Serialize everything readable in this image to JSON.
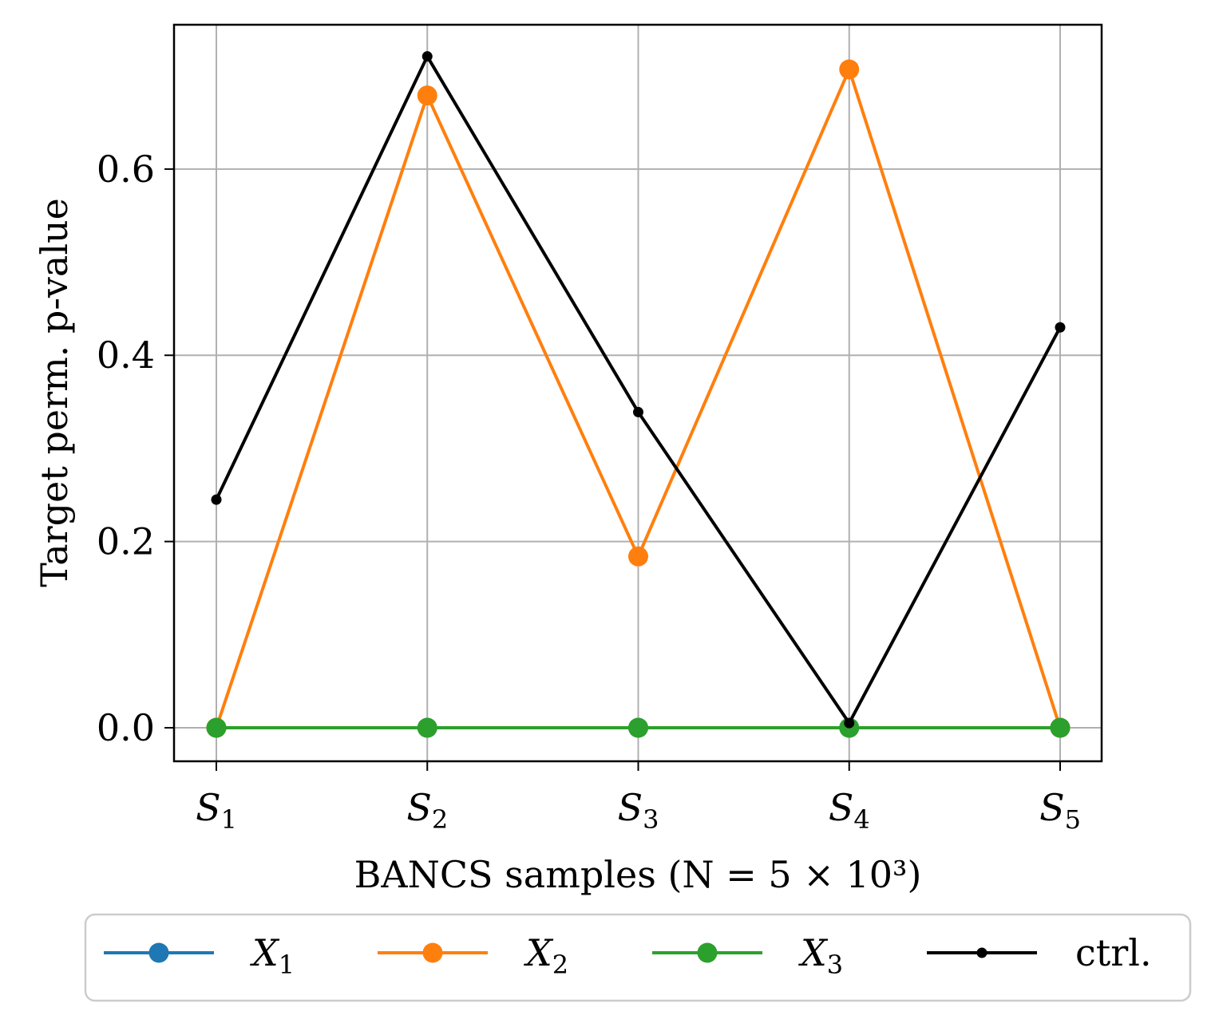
{
  "chart_data": {
    "type": "line",
    "title": "",
    "xlabel": "BANCS samples (N = 5 × 10³)",
    "ylabel": "Target perm.  p-value",
    "categories": [
      "S1",
      "S2",
      "S3",
      "S4",
      "S5"
    ],
    "category_labels": [
      {
        "base": "S",
        "sub": "1"
      },
      {
        "base": "S",
        "sub": "2"
      },
      {
        "base": "S",
        "sub": "3"
      },
      {
        "base": "S",
        "sub": "4"
      },
      {
        "base": "S",
        "sub": "5"
      }
    ],
    "ylim": [
      -0.036,
      0.755
    ],
    "yticks": [
      0.0,
      0.2,
      0.4,
      0.6
    ],
    "ytick_labels": [
      "0.0",
      "0.2",
      "0.4",
      "0.6"
    ],
    "grid": true,
    "legend_position": "bottom-outside",
    "series": [
      {
        "name": "X1",
        "label_base": "X",
        "label_sub": "1",
        "color": "#1f77b4",
        "marker": "circle",
        "values": [
          0.0,
          0.0,
          0.0,
          0.0,
          0.0
        ]
      },
      {
        "name": "X2",
        "label_base": "X",
        "label_sub": "2",
        "color": "#ff7f0e",
        "marker": "circle",
        "values": [
          0.0,
          0.679,
          0.184,
          0.707,
          0.0
        ]
      },
      {
        "name": "X3",
        "label_base": "X",
        "label_sub": "3",
        "color": "#2ca02c",
        "marker": "circle",
        "values": [
          0.0,
          0.0,
          0.0,
          0.0,
          0.0
        ]
      },
      {
        "name": "ctrl.",
        "label_base": "ctrl.",
        "label_sub": "",
        "color": "#000000",
        "marker": "point",
        "values": [
          0.245,
          0.721,
          0.339,
          0.005,
          0.43
        ]
      }
    ]
  }
}
